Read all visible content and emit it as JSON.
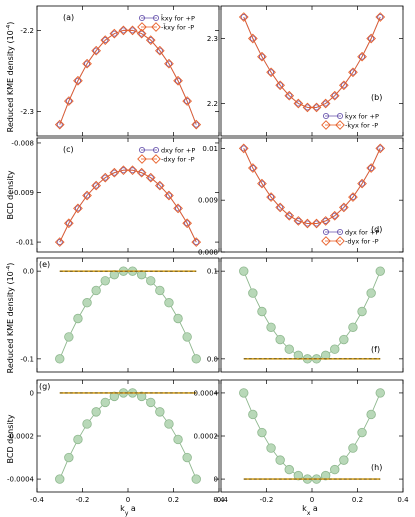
{
  "chart_data": [
    {
      "id": "a",
      "type": "line",
      "panel_label": "(a)",
      "xlim": [
        -0.4,
        0.4
      ],
      "ylim": [
        -2.33,
        -2.17
      ],
      "yticks": [
        -2.3,
        -2.2
      ],
      "ytick_labels": [
        "-2.3",
        "-2.2"
      ],
      "xticks": [
        -0.4,
        -0.2,
        0,
        0.2,
        0.4
      ],
      "show_xtick_labels": false,
      "legend_position": "top-right",
      "series": [
        {
          "name": "k̃xy for +P",
          "style": "purple-circle",
          "color": "#6e5bb0",
          "x": [
            -0.3,
            -0.26,
            -0.22,
            -0.18,
            -0.14,
            -0.1,
            -0.06,
            -0.02,
            0.02,
            0.06,
            0.1,
            0.14,
            0.18,
            0.22,
            0.26,
            0.3
          ],
          "y": [
            -2.316,
            -2.287,
            -2.262,
            -2.241,
            -2.225,
            -2.212,
            -2.204,
            -2.2,
            -2.2,
            -2.204,
            -2.212,
            -2.225,
            -2.241,
            -2.262,
            -2.287,
            -2.316
          ]
        },
        {
          "name": "-k̃xy for -P",
          "style": "orange-diamond",
          "color": "#e8622c",
          "x": [
            -0.3,
            -0.26,
            -0.22,
            -0.18,
            -0.14,
            -0.1,
            -0.06,
            -0.02,
            0.02,
            0.06,
            0.1,
            0.14,
            0.18,
            0.22,
            0.26,
            0.3
          ],
          "y": [
            -2.316,
            -2.287,
            -2.262,
            -2.241,
            -2.225,
            -2.212,
            -2.204,
            -2.2,
            -2.2,
            -2.204,
            -2.212,
            -2.225,
            -2.241,
            -2.262,
            -2.287,
            -2.316
          ]
        }
      ]
    },
    {
      "id": "b",
      "type": "line",
      "panel_label": "(b)",
      "xlim": [
        -0.4,
        0.4
      ],
      "ylim": [
        2.15,
        2.35
      ],
      "yticks": [
        2.2,
        2.3
      ],
      "ytick_labels": [
        "2.2",
        "2.3"
      ],
      "xticks": [
        -0.4,
        -0.2,
        0,
        0.2,
        0.4
      ],
      "show_xtick_labels": false,
      "legend_position": "bottom-right",
      "series": [
        {
          "name": "k̃yx for +P",
          "style": "purple-circle",
          "color": "#6e5bb0",
          "x": [
            -0.3,
            -0.26,
            -0.22,
            -0.18,
            -0.14,
            -0.1,
            -0.06,
            -0.02,
            0.02,
            0.06,
            0.1,
            0.14,
            0.18,
            0.22,
            0.26,
            0.3
          ],
          "y": [
            2.333,
            2.3,
            2.272,
            2.248,
            2.228,
            2.212,
            2.2,
            2.194,
            2.194,
            2.2,
            2.212,
            2.228,
            2.248,
            2.272,
            2.3,
            2.333
          ]
        },
        {
          "name": "-k̃yx for -P",
          "style": "orange-diamond",
          "color": "#e8622c",
          "x": [
            -0.3,
            -0.26,
            -0.22,
            -0.18,
            -0.14,
            -0.1,
            -0.06,
            -0.02,
            0.02,
            0.06,
            0.1,
            0.14,
            0.18,
            0.22,
            0.26,
            0.3
          ],
          "y": [
            2.333,
            2.3,
            2.272,
            2.248,
            2.228,
            2.212,
            2.2,
            2.194,
            2.194,
            2.2,
            2.212,
            2.228,
            2.248,
            2.272,
            2.3,
            2.333
          ]
        }
      ]
    },
    {
      "id": "c",
      "type": "line",
      "panel_label": "(c)",
      "xlim": [
        -0.4,
        0.4
      ],
      "ylim": [
        -0.0102,
        -0.0079
      ],
      "yticks": [
        -0.01,
        -0.009,
        -0.008
      ],
      "ytick_labels": [
        "-0.01",
        "-0.009",
        "-0.008"
      ],
      "xticks": [
        -0.4,
        -0.2,
        0,
        0.2,
        0.4
      ],
      "show_xtick_labels": false,
      "legend_position": "top-right",
      "series": [
        {
          "name": "dxy for +P",
          "style": "purple-circle",
          "color": "#6e5bb0",
          "x": [
            -0.3,
            -0.26,
            -0.22,
            -0.18,
            -0.14,
            -0.1,
            -0.06,
            -0.02,
            0.02,
            0.06,
            0.1,
            0.14,
            0.18,
            0.22,
            0.26,
            0.3
          ],
          "y": [
            -0.01,
            -0.00962,
            -0.00932,
            -0.00906,
            -0.00886,
            -0.0087,
            -0.0086,
            -0.00855,
            -0.00855,
            -0.0086,
            -0.0087,
            -0.00886,
            -0.00906,
            -0.00932,
            -0.00962,
            -0.01
          ]
        },
        {
          "name": "-dxy for -P",
          "style": "orange-diamond",
          "color": "#e8622c",
          "x": [
            -0.3,
            -0.26,
            -0.22,
            -0.18,
            -0.14,
            -0.1,
            -0.06,
            -0.02,
            0.02,
            0.06,
            0.1,
            0.14,
            0.18,
            0.22,
            0.26,
            0.3
          ],
          "y": [
            -0.01,
            -0.00962,
            -0.00932,
            -0.00906,
            -0.00886,
            -0.0087,
            -0.0086,
            -0.00855,
            -0.00855,
            -0.0086,
            -0.0087,
            -0.00886,
            -0.00906,
            -0.00932,
            -0.00962,
            -0.01
          ]
        }
      ]
    },
    {
      "id": "d",
      "type": "line",
      "panel_label": "(d)",
      "xlim": [
        -0.4,
        0.4
      ],
      "ylim": [
        0.008,
        0.0102
      ],
      "yticks": [
        0.008,
        0.009,
        0.01
      ],
      "ytick_labels": [
        "0.008",
        "0.009",
        "0.01"
      ],
      "xticks": [
        -0.4,
        -0.2,
        0,
        0.2,
        0.4
      ],
      "show_xtick_labels": false,
      "legend_position": "bottom-right",
      "series": [
        {
          "name": "dyx for +P",
          "style": "purple-circle",
          "color": "#6e5bb0",
          "x": [
            -0.3,
            -0.26,
            -0.22,
            -0.18,
            -0.14,
            -0.1,
            -0.06,
            -0.02,
            0.02,
            0.06,
            0.1,
            0.14,
            0.18,
            0.22,
            0.26,
            0.3
          ],
          "y": [
            0.01,
            0.00962,
            0.00932,
            0.00906,
            0.00886,
            0.0087,
            0.0086,
            0.00855,
            0.00855,
            0.0086,
            0.0087,
            0.00886,
            0.00906,
            0.00932,
            0.00962,
            0.01
          ]
        },
        {
          "name": "-dyx for -P",
          "style": "orange-diamond",
          "color": "#e8622c",
          "x": [
            -0.3,
            -0.26,
            -0.22,
            -0.18,
            -0.14,
            -0.1,
            -0.06,
            -0.02,
            0.02,
            0.06,
            0.1,
            0.14,
            0.18,
            0.22,
            0.26,
            0.3
          ],
          "y": [
            0.01,
            0.00962,
            0.00932,
            0.00906,
            0.00886,
            0.0087,
            0.0086,
            0.00855,
            0.00855,
            0.0086,
            0.0087,
            0.00886,
            0.00906,
            0.00932,
            0.00962,
            0.01
          ]
        }
      ]
    },
    {
      "id": "e",
      "type": "line",
      "panel_label": "(e)",
      "xlim": [
        -0.4,
        0.4
      ],
      "ylim": [
        -0.115,
        0.015
      ],
      "yticks": [
        -0.1,
        0
      ],
      "ytick_labels": [
        "-0.1",
        "0.0"
      ],
      "xticks": [
        -0.4,
        -0.2,
        0,
        0.2,
        0.4
      ],
      "show_xtick_labels": false,
      "series": [
        {
          "style": "green-circle",
          "color": "#8fbc8f",
          "x": [
            -0.3,
            -0.26,
            -0.22,
            -0.18,
            -0.14,
            -0.1,
            -0.06,
            -0.02,
            0.02,
            0.06,
            0.1,
            0.14,
            0.18,
            0.22,
            0.26,
            0.3
          ],
          "y": [
            -0.1,
            -0.075,
            -0.054,
            -0.036,
            -0.022,
            -0.011,
            -0.004,
            0,
            0,
            -0.004,
            -0.011,
            -0.022,
            -0.036,
            -0.054,
            -0.075,
            -0.1
          ]
        },
        {
          "style": "baseline",
          "color": "#c9a227",
          "x": [
            -0.3,
            0.3
          ],
          "y": [
            0,
            0
          ]
        }
      ]
    },
    {
      "id": "f",
      "type": "line",
      "panel_label": "(f)",
      "xlim": [
        -0.4,
        0.4
      ],
      "ylim": [
        -0.015,
        0.115
      ],
      "yticks": [
        0,
        0.1
      ],
      "ytick_labels": [
        "0.0",
        "0.1"
      ],
      "xticks": [
        -0.4,
        -0.2,
        0,
        0.2,
        0.4
      ],
      "show_xtick_labels": false,
      "series": [
        {
          "style": "green-circle",
          "color": "#8fbc8f",
          "x": [
            -0.3,
            -0.26,
            -0.22,
            -0.18,
            -0.14,
            -0.1,
            -0.06,
            -0.02,
            0.02,
            0.06,
            0.1,
            0.14,
            0.18,
            0.22,
            0.26,
            0.3
          ],
          "y": [
            0.1,
            0.075,
            0.054,
            0.036,
            0.022,
            0.011,
            0.004,
            0,
            0,
            0.004,
            0.011,
            0.022,
            0.036,
            0.054,
            0.075,
            0.1
          ]
        },
        {
          "style": "baseline",
          "color": "#c9a227",
          "x": [
            -0.3,
            0.3
          ],
          "y": [
            0,
            0
          ]
        }
      ]
    },
    {
      "id": "g",
      "type": "line",
      "panel_label": "(g)",
      "xlim": [
        -0.4,
        0.4
      ],
      "ylim": [
        -0.00046,
        6e-05
      ],
      "yticks": [
        -0.0004,
        -0.0002,
        0
      ],
      "ytick_labels": [
        "-0.0004",
        "-0.0002",
        "0"
      ],
      "xticks": [
        -0.4,
        -0.2,
        0,
        0.2,
        0.4
      ],
      "xtick_labels": [
        "-0.4",
        "-0.2",
        "0",
        "0.2",
        "0.4"
      ],
      "show_xtick_labels": true,
      "series": [
        {
          "style": "green-circle",
          "color": "#8fbc8f",
          "x": [
            -0.3,
            -0.26,
            -0.22,
            -0.18,
            -0.14,
            -0.1,
            -0.06,
            -0.02,
            0.02,
            0.06,
            0.1,
            0.14,
            0.18,
            0.22,
            0.26,
            0.3
          ],
          "y": [
            -0.0004,
            -0.0003,
            -0.000216,
            -0.000144,
            -8.8e-05,
            -4.4e-05,
            -1.6e-05,
            0,
            0,
            -1.6e-05,
            -4.4e-05,
            -8.8e-05,
            -0.000144,
            -0.000216,
            -0.0003,
            -0.0004
          ]
        },
        {
          "style": "baseline",
          "color": "#c9a227",
          "x": [
            -0.3,
            0.3
          ],
          "y": [
            0,
            0
          ]
        }
      ]
    },
    {
      "id": "h",
      "type": "line",
      "panel_label": "(h)",
      "xlim": [
        -0.4,
        0.4
      ],
      "ylim": [
        -6e-05,
        0.00046
      ],
      "yticks": [
        0,
        0.0002,
        0.0004
      ],
      "ytick_labels": [
        "0",
        "0.0002",
        "0.0004"
      ],
      "xticks": [
        -0.4,
        -0.2,
        0,
        0.2,
        0.4
      ],
      "xtick_labels": [
        "-0.4",
        "-0.2",
        "0",
        "0.2",
        "0.4"
      ],
      "show_xtick_labels": true,
      "series": [
        {
          "style": "green-circle",
          "color": "#8fbc8f",
          "x": [
            -0.3,
            -0.26,
            -0.22,
            -0.18,
            -0.14,
            -0.1,
            -0.06,
            -0.02,
            0.02,
            0.06,
            0.1,
            0.14,
            0.18,
            0.22,
            0.26,
            0.3
          ],
          "y": [
            0.0004,
            0.0003,
            0.000216,
            0.000144,
            8.8e-05,
            4.4e-05,
            1.6e-05,
            0,
            0,
            1.6e-05,
            4.4e-05,
            8.8e-05,
            0.000144,
            0.000216,
            0.0003,
            0.0004
          ]
        },
        {
          "style": "baseline",
          "color": "#c9a227",
          "x": [
            -0.3,
            0.3
          ],
          "y": [
            0,
            0
          ]
        }
      ]
    }
  ],
  "axis_labels": {
    "ylabel_row1": "Reduced KME density (10",
    "ylabel_row1_sup": "-4",
    "ylabel_row1_end": ")",
    "ylabel_row2": "BCD density",
    "ylabel_row3": "Reduced KME density (10",
    "ylabel_row3_sup": "-4",
    "ylabel_row3_end": ")",
    "ylabel_row4": "BCD density",
    "xlabel_left": "k",
    "xlabel_left_sub": "y",
    "xlabel_left_end": " a",
    "xlabel_right": "k",
    "xlabel_right_sub": "x",
    "xlabel_right_end": " a"
  }
}
